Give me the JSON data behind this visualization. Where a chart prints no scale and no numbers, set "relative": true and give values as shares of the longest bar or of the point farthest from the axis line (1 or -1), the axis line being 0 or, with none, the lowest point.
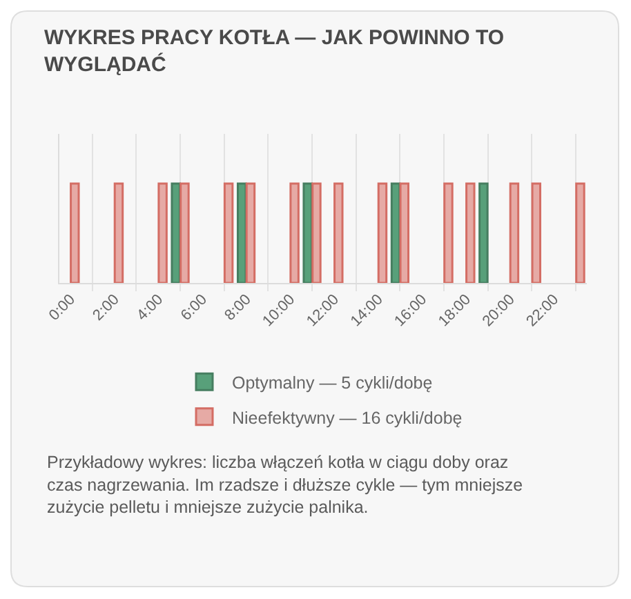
{
  "chart_data": {
    "type": "bar",
    "title": "WYKRES PRACY KOTŁA — JAK POWINNO TO WYGLĄDAĆ",
    "x": [
      0,
      1,
      2,
      3,
      4,
      5,
      6,
      7,
      8,
      9,
      10,
      11,
      12,
      13,
      14,
      15,
      16,
      17,
      18,
      19,
      20,
      21,
      22,
      23
    ],
    "xlim": [
      -0.5,
      23.5
    ],
    "xticks": [
      {
        "value": 0,
        "label": "0:00"
      },
      {
        "value": 1,
        "label": null
      },
      {
        "value": 2,
        "label": "2:00"
      },
      {
        "value": 3,
        "label": null
      },
      {
        "value": 4,
        "label": "4:00"
      },
      {
        "value": 5,
        "label": null
      },
      {
        "value": 6,
        "label": "6:00"
      },
      {
        "value": 7,
        "label": null
      },
      {
        "value": 8,
        "label": "8:00"
      },
      {
        "value": 9,
        "label": null
      },
      {
        "value": 10,
        "label": "10:00"
      },
      {
        "value": 11,
        "label": null
      },
      {
        "value": 12,
        "label": "12:00"
      },
      {
        "value": 13,
        "label": null
      },
      {
        "value": 14,
        "label": "14:00"
      },
      {
        "value": 15,
        "label": null
      },
      {
        "value": 16,
        "label": "16:00"
      },
      {
        "value": 17,
        "label": null
      },
      {
        "value": 18,
        "label": "18:00"
      },
      {
        "value": 19,
        "label": null
      },
      {
        "value": 20,
        "label": "20:00"
      },
      {
        "value": 21,
        "label": null
      },
      {
        "value": 22,
        "label": "22:00"
      },
      {
        "value": 23,
        "label": null
      }
    ],
    "relative": true,
    "series": [
      {
        "name": "Optymalny — 5 cykli/dobę",
        "color": "#58a07a",
        "values": [
          null,
          null,
          null,
          null,
          null,
          1,
          null,
          null,
          1,
          null,
          null,
          1,
          null,
          null,
          null,
          1,
          null,
          null,
          null,
          1,
          null,
          null,
          null,
          null
        ]
      },
      {
        "name": "Nieefektywny — 16 cykli/dobę",
        "color": "#e6aaa5",
        "values": [
          1,
          null,
          1,
          null,
          1,
          1,
          null,
          1,
          1,
          null,
          1,
          1,
          1,
          null,
          1,
          1,
          null,
          1,
          1,
          null,
          1,
          1,
          null,
          1
        ]
      }
    ],
    "grid": "x",
    "legend": "bottom",
    "annotations": [
      "Przykładowy wykres: liczba włączeń kotła w ciągu doby oraz czas nagrzewania. Im rzadsze i dłuższe cykle — tym mniejsze zużycie pelletu i mniejsze zużycie palnika."
    ]
  }
}
